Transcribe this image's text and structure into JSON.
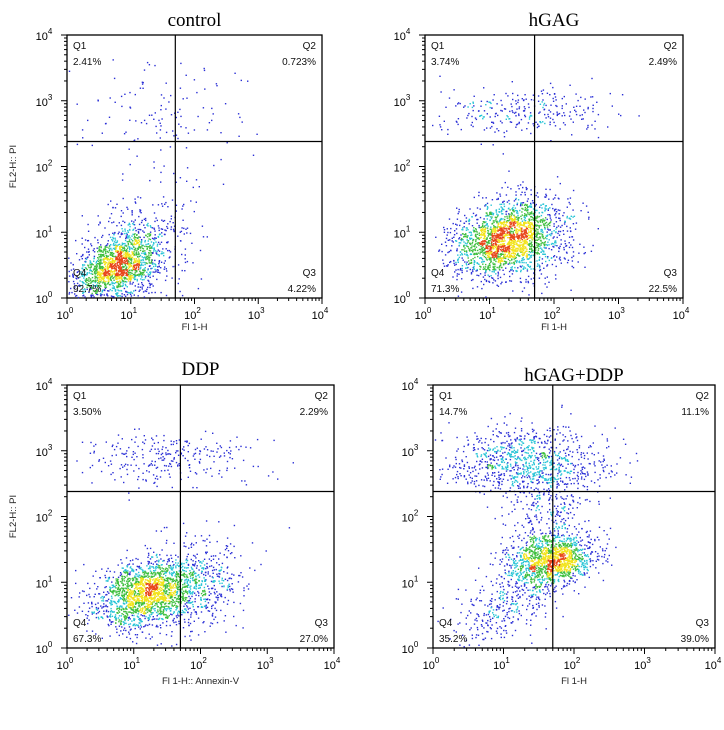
{
  "chart_data": [
    {
      "type": "scatter",
      "title": "control",
      "xlabel": "Fl 1-H",
      "ylabel": "FL2-H:: PI",
      "xscale": "log",
      "yscale": "log",
      "xlim": [
        1,
        10000
      ],
      "ylim": [
        1,
        10000
      ],
      "xticks": [
        {
          "base": "10",
          "exp": "0",
          "v": 1
        },
        {
          "base": "10",
          "exp": "1",
          "v": 10
        },
        {
          "base": "10",
          "exp": "2",
          "v": 100
        },
        {
          "base": "10",
          "exp": "3",
          "v": 1000
        },
        {
          "base": "10",
          "exp": "4",
          "v": 10000
        }
      ],
      "yticks": [
        {
          "base": "10",
          "exp": "0",
          "v": 1
        },
        {
          "base": "10",
          "exp": "1",
          "v": 10
        },
        {
          "base": "10",
          "exp": "2",
          "v": 100
        },
        {
          "base": "10",
          "exp": "3",
          "v": 1000
        },
        {
          "base": "10",
          "exp": "4",
          "v": 10000
        }
      ],
      "gate": {
        "x": 50,
        "y": 240
      },
      "quadrants": [
        {
          "id": "Q1",
          "value": "2.41%",
          "pos": "top-left"
        },
        {
          "id": "Q2",
          "value": "0.723%",
          "pos": "top-right"
        },
        {
          "id": "Q3",
          "value": "4.22%",
          "pos": "bottom-right"
        },
        {
          "id": "Q4",
          "value": "92.7%",
          "pos": "bottom-left"
        }
      ],
      "clusters": [
        {
          "cx": 6,
          "cy": 3,
          "sx": 0.32,
          "sy": 0.26,
          "rho": 0.4,
          "n": 1500
        },
        {
          "cx": 15,
          "cy": 8,
          "sx": 0.45,
          "sy": 0.45,
          "rho": 0.3,
          "n": 350
        },
        {
          "cx": 30,
          "cy": 700,
          "sx": 0.6,
          "sy": 0.4,
          "rho": 0,
          "n": 120
        }
      ]
    },
    {
      "type": "scatter",
      "title": "hGAG",
      "xlabel": "Fl 1-H",
      "ylabel": "",
      "xscale": "log",
      "yscale": "log",
      "xlim": [
        1,
        10000
      ],
      "ylim": [
        1,
        10000
      ],
      "xticks": [
        {
          "base": "10",
          "exp": "0",
          "v": 1
        },
        {
          "base": "10",
          "exp": "1",
          "v": 10
        },
        {
          "base": "10",
          "exp": "2",
          "v": 100
        },
        {
          "base": "10",
          "exp": "3",
          "v": 1000
        },
        {
          "base": "10",
          "exp": "4",
          "v": 10000
        }
      ],
      "yticks": [
        {
          "base": "10",
          "exp": "0",
          "v": 1
        },
        {
          "base": "10",
          "exp": "1",
          "v": 10
        },
        {
          "base": "10",
          "exp": "2",
          "v": 100
        },
        {
          "base": "10",
          "exp": "3",
          "v": 1000
        },
        {
          "base": "10",
          "exp": "4",
          "v": 10000
        }
      ],
      "gate": {
        "x": 50,
        "y": 240
      },
      "quadrants": [
        {
          "id": "Q1",
          "value": "3.74%",
          "pos": "top-left"
        },
        {
          "id": "Q2",
          "value": "2.49%",
          "pos": "top-right"
        },
        {
          "id": "Q3",
          "value": "22.5%",
          "pos": "bottom-right"
        },
        {
          "id": "Q4",
          "value": "71.3%",
          "pos": "bottom-left"
        }
      ],
      "clusters": [
        {
          "cx": 15,
          "cy": 8,
          "sx": 0.38,
          "sy": 0.28,
          "rho": 0.3,
          "n": 1700
        },
        {
          "cx": 50,
          "cy": 8,
          "sx": 0.35,
          "sy": 0.35,
          "rho": 0.2,
          "n": 500
        },
        {
          "cx": 30,
          "cy": 700,
          "sx": 0.7,
          "sy": 0.18,
          "rho": 0,
          "n": 280
        }
      ]
    },
    {
      "type": "scatter",
      "title": "DDP",
      "xlabel": "Fl 1-H:: Annexin-V",
      "ylabel": "FL2-H:: PI",
      "xscale": "log",
      "yscale": "log",
      "xlim": [
        1,
        10000
      ],
      "ylim": [
        1,
        10000
      ],
      "xticks": [
        {
          "base": "10",
          "exp": "0",
          "v": 1
        },
        {
          "base": "10",
          "exp": "1",
          "v": 10
        },
        {
          "base": "10",
          "exp": "2",
          "v": 100
        },
        {
          "base": "10",
          "exp": "3",
          "v": 1000
        },
        {
          "base": "10",
          "exp": "4",
          "v": 10000
        }
      ],
      "yticks": [
        {
          "base": "10",
          "exp": "0",
          "v": 1
        },
        {
          "base": "10",
          "exp": "1",
          "v": 10
        },
        {
          "base": "10",
          "exp": "2",
          "v": 100
        },
        {
          "base": "10",
          "exp": "3",
          "v": 1000
        },
        {
          "base": "10",
          "exp": "4",
          "v": 10000
        }
      ],
      "gate": {
        "x": 50,
        "y": 240
      },
      "quadrants": [
        {
          "id": "Q1",
          "value": "3.50%",
          "pos": "top-left"
        },
        {
          "id": "Q2",
          "value": "2.29%",
          "pos": "top-right"
        },
        {
          "id": "Q3",
          "value": "27.0%",
          "pos": "bottom-right"
        },
        {
          "id": "Q4",
          "value": "67.3%",
          "pos": "bottom-left"
        }
      ],
      "clusters": [
        {
          "cx": 14,
          "cy": 7,
          "sx": 0.38,
          "sy": 0.27,
          "rho": 0.3,
          "n": 1600
        },
        {
          "cx": 60,
          "cy": 8,
          "sx": 0.4,
          "sy": 0.33,
          "rho": 0.2,
          "n": 600
        },
        {
          "cx": 30,
          "cy": 750,
          "sx": 0.7,
          "sy": 0.2,
          "rho": 0,
          "n": 280
        }
      ]
    },
    {
      "type": "scatter",
      "title": "hGAG+DDP",
      "xlabel": "Fl 1-H",
      "ylabel": "",
      "xscale": "log",
      "yscale": "log",
      "xlim": [
        1,
        10000
      ],
      "ylim": [
        1,
        10000
      ],
      "xticks": [
        {
          "base": "10",
          "exp": "0",
          "v": 1
        },
        {
          "base": "10",
          "exp": "1",
          "v": 10
        },
        {
          "base": "10",
          "exp": "2",
          "v": 100
        },
        {
          "base": "10",
          "exp": "3",
          "v": 1000
        },
        {
          "base": "10",
          "exp": "4",
          "v": 10000
        }
      ],
      "yticks": [
        {
          "base": "10",
          "exp": "0",
          "v": 1
        },
        {
          "base": "10",
          "exp": "1",
          "v": 10
        },
        {
          "base": "10",
          "exp": "2",
          "v": 100
        },
        {
          "base": "10",
          "exp": "3",
          "v": 1000
        },
        {
          "base": "10",
          "exp": "4",
          "v": 10000
        }
      ],
      "gate": {
        "x": 50,
        "y": 240
      },
      "quadrants": [
        {
          "id": "Q1",
          "value": "14.7%",
          "pos": "top-left"
        },
        {
          "id": "Q2",
          "value": "11.1%",
          "pos": "top-right"
        },
        {
          "id": "Q3",
          "value": "39.0%",
          "pos": "bottom-right"
        },
        {
          "id": "Q4",
          "value": "35.2%",
          "pos": "bottom-left"
        }
      ],
      "clusters": [
        {
          "cx": 45,
          "cy": 22,
          "sx": 0.3,
          "sy": 0.2,
          "rho": 0.2,
          "n": 1400
        },
        {
          "cx": 20,
          "cy": 700,
          "sx": 0.6,
          "sy": 0.25,
          "rho": 0,
          "n": 900
        },
        {
          "cx": 40,
          "cy": 150,
          "sx": 0.3,
          "sy": 0.3,
          "rho": 0,
          "n": 250
        },
        {
          "cx": 10,
          "cy": 4,
          "sx": 0.35,
          "sy": 0.25,
          "rho": 0.4,
          "n": 300
        }
      ]
    }
  ],
  "colors": {
    "sparse": "#2a2fd6",
    "low": "#27c4d6",
    "mid": "#3fbf3f",
    "high": "#f2e31b",
    "peak": "#e8461b"
  }
}
